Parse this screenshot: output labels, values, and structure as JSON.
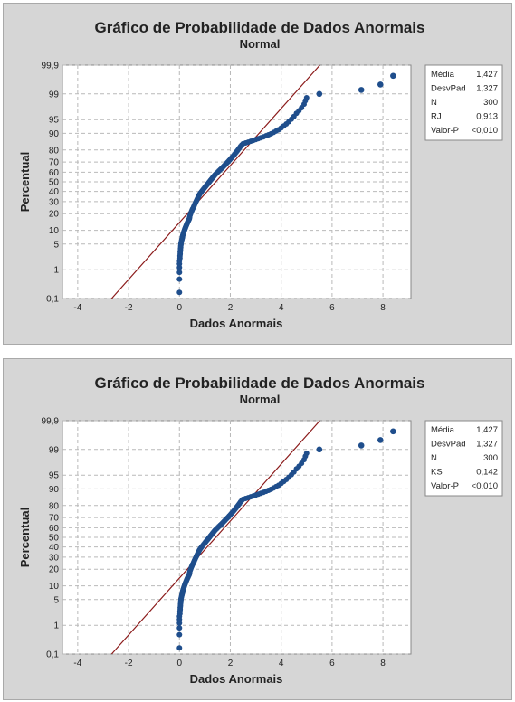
{
  "chart_data": [
    {
      "type": "scatter",
      "title": "Gráfico de Probabilidade de Dados Anormais",
      "subtitle": "Normal",
      "xlabel": "Dados Anormais",
      "ylabel": "Percentual",
      "xlim": [
        -4.6,
        9.1
      ],
      "ylim": [
        0.1,
        99.9
      ],
      "yscale": "normal-probability",
      "x_ticks": [
        "-4",
        "-2",
        "0",
        "2",
        "4",
        "6",
        "8"
      ],
      "y_ticks": [
        "0,1",
        "1",
        "5",
        "10",
        "20",
        "30",
        "40",
        "50",
        "60",
        "70",
        "80",
        "90",
        "95",
        "99",
        "99,9"
      ],
      "grid": true,
      "fit_line": {
        "mean": 1.427,
        "sd": 1.327,
        "color": "#8b1a1a"
      },
      "marker_color": "#1f4e8c",
      "stats": [
        {
          "label": "Média",
          "value": "1,427"
        },
        {
          "label": "DesvPad",
          "value": "1,327"
        },
        {
          "label": "N",
          "value": "300"
        },
        {
          "label": "RJ",
          "value": "0,913"
        },
        {
          "label": "Valor-P",
          "value": "<0,010"
        }
      ],
      "outliers": [
        {
          "x": 5.5,
          "y": 99.0
        },
        {
          "x": 7.15,
          "y": 99.25
        },
        {
          "x": 7.9,
          "y": 99.5
        },
        {
          "x": 8.4,
          "y": 99.75
        }
      ],
      "points": [
        [
          0.0,
          0.17
        ],
        [
          0.0,
          0.5
        ],
        [
          0.0,
          0.83
        ],
        [
          0.0,
          1.17
        ],
        [
          0.0,
          1.5
        ],
        [
          0.0,
          1.83
        ],
        [
          0.02,
          2.17
        ],
        [
          0.02,
          2.5
        ],
        [
          0.03,
          2.83
        ],
        [
          0.03,
          3.17
        ],
        [
          0.04,
          3.5
        ],
        [
          0.04,
          3.83
        ],
        [
          0.05,
          4.17
        ],
        [
          0.05,
          4.5
        ],
        [
          0.06,
          4.83
        ],
        [
          0.06,
          5.17
        ],
        [
          0.07,
          5.5
        ],
        [
          0.08,
          5.83
        ],
        [
          0.09,
          6.17
        ],
        [
          0.1,
          6.5
        ],
        [
          0.11,
          6.83
        ],
        [
          0.12,
          7.17
        ],
        [
          0.12,
          7.5
        ],
        [
          0.13,
          7.83
        ],
        [
          0.14,
          8.17
        ],
        [
          0.15,
          8.5
        ],
        [
          0.16,
          8.83
        ],
        [
          0.17,
          9.17
        ],
        [
          0.18,
          9.5
        ],
        [
          0.19,
          9.83
        ],
        [
          0.2,
          10.17
        ],
        [
          0.21,
          10.5
        ],
        [
          0.22,
          10.83
        ],
        [
          0.23,
          11.17
        ],
        [
          0.24,
          11.5
        ],
        [
          0.25,
          11.83
        ],
        [
          0.26,
          12.17
        ],
        [
          0.27,
          12.5
        ],
        [
          0.28,
          12.83
        ],
        [
          0.29,
          13.17
        ],
        [
          0.3,
          13.5
        ],
        [
          0.31,
          13.83
        ],
        [
          0.32,
          14.17
        ],
        [
          0.33,
          14.5
        ],
        [
          0.34,
          14.83
        ],
        [
          0.35,
          15.17
        ],
        [
          0.36,
          15.5
        ],
        [
          0.37,
          15.83
        ],
        [
          0.38,
          16.17
        ],
        [
          0.39,
          16.5
        ],
        [
          0.4,
          17.5
        ],
        [
          0.41,
          18.5
        ],
        [
          0.43,
          19.5
        ],
        [
          0.45,
          20.5
        ],
        [
          0.47,
          21.5
        ],
        [
          0.49,
          22.5
        ],
        [
          0.51,
          23.5
        ],
        [
          0.54,
          24.5
        ],
        [
          0.56,
          25.5
        ],
        [
          0.58,
          26.5
        ],
        [
          0.6,
          27.5
        ],
        [
          0.62,
          28.5
        ],
        [
          0.64,
          29.5
        ],
        [
          0.66,
          30.5
        ],
        [
          0.68,
          31.5
        ],
        [
          0.7,
          32.5
        ],
        [
          0.72,
          33.5
        ],
        [
          0.74,
          34.5
        ],
        [
          0.76,
          35.5
        ],
        [
          0.78,
          36.5
        ],
        [
          0.8,
          37.5
        ],
        [
          0.83,
          38.5
        ],
        [
          0.86,
          39.5
        ],
        [
          0.89,
          40.5
        ],
        [
          0.92,
          41.5
        ],
        [
          0.95,
          42.5
        ],
        [
          0.98,
          43.5
        ],
        [
          1.01,
          44.5
        ],
        [
          1.04,
          45.5
        ],
        [
          1.07,
          46.5
        ],
        [
          1.1,
          47.5
        ],
        [
          1.13,
          48.5
        ],
        [
          1.16,
          49.5
        ],
        [
          1.19,
          50.5
        ],
        [
          1.22,
          51.5
        ],
        [
          1.25,
          52.5
        ],
        [
          1.28,
          53.5
        ],
        [
          1.31,
          54.5
        ],
        [
          1.34,
          55.5
        ],
        [
          1.37,
          56.5
        ],
        [
          1.4,
          57.5
        ],
        [
          1.44,
          58.5
        ],
        [
          1.48,
          59.5
        ],
        [
          1.52,
          60.5
        ],
        [
          1.56,
          61.5
        ],
        [
          1.6,
          62.5
        ],
        [
          1.64,
          63.5
        ],
        [
          1.68,
          64.5
        ],
        [
          1.72,
          65.5
        ],
        [
          1.76,
          66.5
        ],
        [
          1.8,
          67.5
        ],
        [
          1.84,
          68.5
        ],
        [
          1.88,
          69.5
        ],
        [
          1.92,
          70.5
        ],
        [
          1.96,
          71.5
        ],
        [
          2.0,
          72.5
        ],
        [
          2.04,
          73.5
        ],
        [
          2.08,
          74.5
        ],
        [
          2.12,
          75.5
        ],
        [
          2.16,
          76.5
        ],
        [
          2.2,
          77.5
        ],
        [
          2.24,
          78.5
        ],
        [
          2.28,
          79.5
        ],
        [
          2.32,
          80.5
        ],
        [
          2.36,
          81.5
        ],
        [
          2.4,
          82.5
        ],
        [
          2.45,
          83.5
        ],
        [
          2.5,
          84.3
        ],
        [
          2.6,
          84.8
        ],
        [
          2.7,
          85.3
        ],
        [
          2.8,
          85.8
        ],
        [
          2.9,
          86.3
        ],
        [
          3.0,
          86.8
        ],
        [
          3.1,
          87.3
        ],
        [
          3.2,
          87.8
        ],
        [
          3.3,
          88.3
        ],
        [
          3.4,
          88.8
        ],
        [
          3.5,
          89.3
        ],
        [
          3.6,
          89.8
        ],
        [
          3.7,
          90.4
        ],
        [
          3.8,
          91.0
        ],
        [
          3.9,
          91.6
        ],
        [
          4.0,
          92.3
        ],
        [
          4.1,
          93.0
        ],
        [
          4.2,
          93.7
        ],
        [
          4.3,
          94.4
        ],
        [
          4.4,
          95.1
        ],
        [
          4.5,
          95.8
        ],
        [
          4.6,
          96.5
        ],
        [
          4.7,
          97.0
        ],
        [
          4.8,
          97.5
        ],
        [
          4.9,
          98.0
        ],
        [
          4.95,
          98.4
        ],
        [
          5.0,
          98.7
        ]
      ]
    },
    {
      "type": "scatter",
      "title": "Gráfico de Probabilidade de Dados Anormais",
      "subtitle": "Normal",
      "xlabel": "Dados Anormais",
      "ylabel": "Percentual",
      "xlim": [
        -4.6,
        9.1
      ],
      "ylim": [
        0.1,
        99.9
      ],
      "yscale": "normal-probability",
      "x_ticks": [
        "-4",
        "-2",
        "0",
        "2",
        "4",
        "6",
        "8"
      ],
      "y_ticks": [
        "0,1",
        "1",
        "5",
        "10",
        "20",
        "30",
        "40",
        "50",
        "60",
        "70",
        "80",
        "90",
        "95",
        "99",
        "99,9"
      ],
      "grid": true,
      "fit_line": {
        "mean": 1.427,
        "sd": 1.327,
        "color": "#8b1a1a"
      },
      "marker_color": "#1f4e8c",
      "stats": [
        {
          "label": "Média",
          "value": "1,427"
        },
        {
          "label": "DesvPad",
          "value": "1,327"
        },
        {
          "label": "N",
          "value": "300"
        },
        {
          "label": "KS",
          "value": "0,142"
        },
        {
          "label": "Valor-P",
          "value": "<0,010"
        }
      ],
      "outliers": [
        {
          "x": 5.5,
          "y": 99.0
        },
        {
          "x": 7.15,
          "y": 99.25
        },
        {
          "x": 7.9,
          "y": 99.5
        },
        {
          "x": 8.4,
          "y": 99.75
        }
      ],
      "points": [
        [
          0.0,
          0.17
        ],
        [
          0.0,
          0.5
        ],
        [
          0.0,
          0.83
        ],
        [
          0.0,
          1.17
        ],
        [
          0.0,
          1.5
        ],
        [
          0.0,
          1.83
        ],
        [
          0.02,
          2.17
        ],
        [
          0.02,
          2.5
        ],
        [
          0.03,
          2.83
        ],
        [
          0.03,
          3.17
        ],
        [
          0.04,
          3.5
        ],
        [
          0.04,
          3.83
        ],
        [
          0.05,
          4.17
        ],
        [
          0.05,
          4.5
        ],
        [
          0.06,
          4.83
        ],
        [
          0.06,
          5.17
        ],
        [
          0.07,
          5.5
        ],
        [
          0.08,
          5.83
        ],
        [
          0.09,
          6.17
        ],
        [
          0.1,
          6.5
        ],
        [
          0.11,
          6.83
        ],
        [
          0.12,
          7.17
        ],
        [
          0.12,
          7.5
        ],
        [
          0.13,
          7.83
        ],
        [
          0.14,
          8.17
        ],
        [
          0.15,
          8.5
        ],
        [
          0.16,
          8.83
        ],
        [
          0.17,
          9.17
        ],
        [
          0.18,
          9.5
        ],
        [
          0.19,
          9.83
        ],
        [
          0.2,
          10.17
        ],
        [
          0.21,
          10.5
        ],
        [
          0.22,
          10.83
        ],
        [
          0.23,
          11.17
        ],
        [
          0.24,
          11.5
        ],
        [
          0.25,
          11.83
        ],
        [
          0.26,
          12.17
        ],
        [
          0.27,
          12.5
        ],
        [
          0.28,
          12.83
        ],
        [
          0.29,
          13.17
        ],
        [
          0.3,
          13.5
        ],
        [
          0.31,
          13.83
        ],
        [
          0.32,
          14.17
        ],
        [
          0.33,
          14.5
        ],
        [
          0.34,
          14.83
        ],
        [
          0.35,
          15.17
        ],
        [
          0.36,
          15.5
        ],
        [
          0.37,
          15.83
        ],
        [
          0.38,
          16.17
        ],
        [
          0.39,
          16.5
        ],
        [
          0.4,
          17.5
        ],
        [
          0.41,
          18.5
        ],
        [
          0.43,
          19.5
        ],
        [
          0.45,
          20.5
        ],
        [
          0.47,
          21.5
        ],
        [
          0.49,
          22.5
        ],
        [
          0.51,
          23.5
        ],
        [
          0.54,
          24.5
        ],
        [
          0.56,
          25.5
        ],
        [
          0.58,
          26.5
        ],
        [
          0.6,
          27.5
        ],
        [
          0.62,
          28.5
        ],
        [
          0.64,
          29.5
        ],
        [
          0.66,
          30.5
        ],
        [
          0.68,
          31.5
        ],
        [
          0.7,
          32.5
        ],
        [
          0.72,
          33.5
        ],
        [
          0.74,
          34.5
        ],
        [
          0.76,
          35.5
        ],
        [
          0.78,
          36.5
        ],
        [
          0.8,
          37.5
        ],
        [
          0.83,
          38.5
        ],
        [
          0.86,
          39.5
        ],
        [
          0.89,
          40.5
        ],
        [
          0.92,
          41.5
        ],
        [
          0.95,
          42.5
        ],
        [
          0.98,
          43.5
        ],
        [
          1.01,
          44.5
        ],
        [
          1.04,
          45.5
        ],
        [
          1.07,
          46.5
        ],
        [
          1.1,
          47.5
        ],
        [
          1.13,
          48.5
        ],
        [
          1.16,
          49.5
        ],
        [
          1.19,
          50.5
        ],
        [
          1.22,
          51.5
        ],
        [
          1.25,
          52.5
        ],
        [
          1.28,
          53.5
        ],
        [
          1.31,
          54.5
        ],
        [
          1.34,
          55.5
        ],
        [
          1.37,
          56.5
        ],
        [
          1.4,
          57.5
        ],
        [
          1.44,
          58.5
        ],
        [
          1.48,
          59.5
        ],
        [
          1.52,
          60.5
        ],
        [
          1.56,
          61.5
        ],
        [
          1.6,
          62.5
        ],
        [
          1.64,
          63.5
        ],
        [
          1.68,
          64.5
        ],
        [
          1.72,
          65.5
        ],
        [
          1.76,
          66.5
        ],
        [
          1.8,
          67.5
        ],
        [
          1.84,
          68.5
        ],
        [
          1.88,
          69.5
        ],
        [
          1.92,
          70.5
        ],
        [
          1.96,
          71.5
        ],
        [
          2.0,
          72.5
        ],
        [
          2.04,
          73.5
        ],
        [
          2.08,
          74.5
        ],
        [
          2.12,
          75.5
        ],
        [
          2.16,
          76.5
        ],
        [
          2.2,
          77.5
        ],
        [
          2.24,
          78.5
        ],
        [
          2.28,
          79.5
        ],
        [
          2.32,
          80.5
        ],
        [
          2.36,
          81.5
        ],
        [
          2.4,
          82.5
        ],
        [
          2.45,
          83.5
        ],
        [
          2.5,
          84.3
        ],
        [
          2.6,
          84.8
        ],
        [
          2.7,
          85.3
        ],
        [
          2.8,
          85.8
        ],
        [
          2.9,
          86.3
        ],
        [
          3.0,
          86.8
        ],
        [
          3.1,
          87.3
        ],
        [
          3.2,
          87.8
        ],
        [
          3.3,
          88.3
        ],
        [
          3.4,
          88.8
        ],
        [
          3.5,
          89.3
        ],
        [
          3.6,
          89.8
        ],
        [
          3.7,
          90.4
        ],
        [
          3.8,
          91.0
        ],
        [
          3.9,
          91.6
        ],
        [
          4.0,
          92.3
        ],
        [
          4.1,
          93.0
        ],
        [
          4.2,
          93.7
        ],
        [
          4.3,
          94.4
        ],
        [
          4.4,
          95.1
        ],
        [
          4.5,
          95.8
        ],
        [
          4.6,
          96.5
        ],
        [
          4.7,
          97.0
        ],
        [
          4.8,
          97.5
        ],
        [
          4.9,
          98.0
        ],
        [
          4.95,
          98.4
        ],
        [
          5.0,
          98.7
        ]
      ]
    }
  ]
}
